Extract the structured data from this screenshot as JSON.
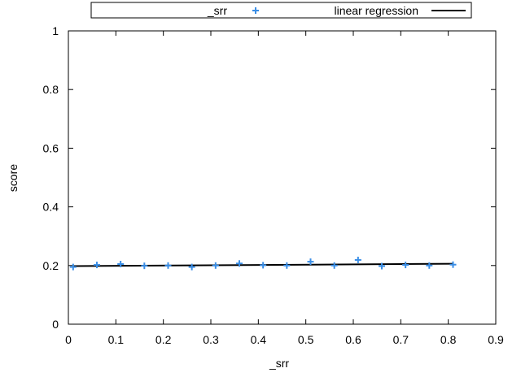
{
  "chart_data": {
    "type": "scatter",
    "xlabel": "_srr",
    "ylabel": "score",
    "xlim": [
      0,
      0.9
    ],
    "ylim": [
      0,
      1
    ],
    "xticks": [
      "0",
      "0.1",
      "0.2",
      "0.3",
      "0.4",
      "0.5",
      "0.6",
      "0.7",
      "0.8",
      "0.9"
    ],
    "yticks": [
      "0",
      "0.2",
      "0.4",
      "0.6",
      "0.8",
      "1"
    ],
    "grid": false,
    "legend_position": "top",
    "series": [
      {
        "name": "_srr",
        "kind": "points",
        "marker": "plus",
        "color": "#3a8ee6",
        "x": [
          0.01,
          0.06,
          0.11,
          0.16,
          0.21,
          0.26,
          0.31,
          0.36,
          0.41,
          0.46,
          0.51,
          0.56,
          0.61,
          0.66,
          0.71,
          0.76,
          0.81
        ],
        "y": [
          0.195,
          0.202,
          0.205,
          0.199,
          0.2,
          0.195,
          0.2,
          0.207,
          0.201,
          0.2,
          0.213,
          0.2,
          0.219,
          0.198,
          0.202,
          0.2,
          0.203
        ]
      },
      {
        "name": "linear regression",
        "kind": "line",
        "color": "#000000",
        "x": [
          0.01,
          0.81
        ],
        "y": [
          0.198,
          0.206
        ]
      }
    ]
  }
}
